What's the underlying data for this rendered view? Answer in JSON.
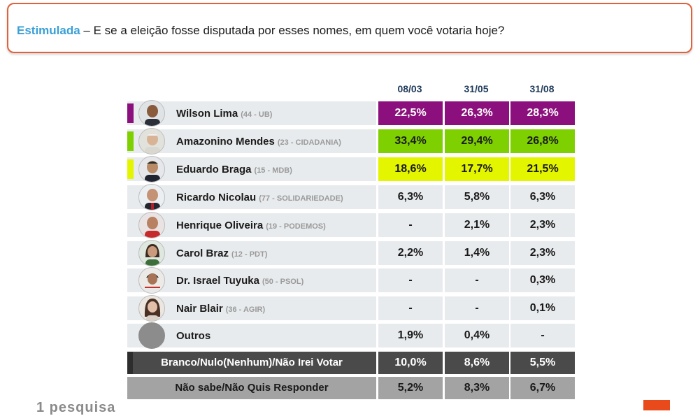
{
  "question": {
    "keyword": "Estimulada",
    "text": " – E se a eleição fosse disputada por esses nomes, em quem você votaria hoje?"
  },
  "columns": [
    "08/03",
    "31/05",
    "31/08"
  ],
  "candidates": [
    {
      "name": "Wilson Lima",
      "party": "(44 - UB)",
      "values": [
        "22,5%",
        "26,3%",
        "28,3%"
      ],
      "color": "#8b0f7c"
    },
    {
      "name": "Amazonino Mendes",
      "party": "(23 - CIDADANIA)",
      "values": [
        "33,4%",
        "29,4%",
        "26,8%"
      ],
      "color": "#7ed000"
    },
    {
      "name": "Eduardo Braga",
      "party": "(15 - MDB)",
      "values": [
        "18,6%",
        "17,7%",
        "21,5%"
      ],
      "color": "#e4f500"
    },
    {
      "name": "Ricardo Nicolau",
      "party": "(77 - SOLIDARIEDADE)",
      "values": [
        "6,3%",
        "5,8%",
        "6,3%"
      ]
    },
    {
      "name": "Henrique Oliveira",
      "party": "(19 - PODEMOS)",
      "values": [
        "-",
        "2,1%",
        "2,3%"
      ]
    },
    {
      "name": "Carol Braz",
      "party": "(12 - PDT)",
      "values": [
        "2,2%",
        "1,4%",
        "2,3%"
      ]
    },
    {
      "name": "Dr. Israel Tuyuka",
      "party": "(50 - PSOL)",
      "values": [
        "-",
        "-",
        "0,3%"
      ]
    },
    {
      "name": "Nair Blair",
      "party": "(36 - AGIR)",
      "values": [
        "-",
        "-",
        "0,1%"
      ]
    },
    {
      "name": "Outros",
      "party": "",
      "values": [
        "1,9%",
        "0,4%",
        "-"
      ]
    }
  ],
  "summary": [
    {
      "label": "Branco/Nulo(Nenhum)/Não Irei Votar",
      "values": [
        "10,0%",
        "8,6%",
        "5,5%"
      ]
    },
    {
      "label": "Não sabe/Não Quis Responder",
      "values": [
        "5,2%",
        "8,3%",
        "6,7%"
      ]
    }
  ],
  "footer": {
    "logo_text": "1 pesquisa"
  }
}
